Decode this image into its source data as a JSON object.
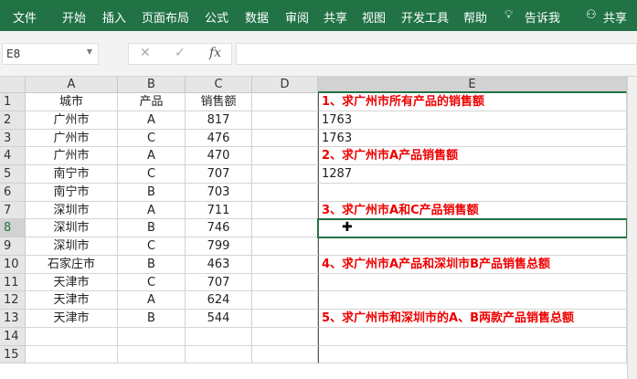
{
  "ribbon": {
    "tabs": [
      "文件",
      "开始",
      "插入",
      "页面布局",
      "公式",
      "数据",
      "审阅",
      "共享",
      "视图",
      "开发工具",
      "帮助"
    ],
    "tell_me": "告诉我",
    "share": "共享"
  },
  "formula_bar": {
    "name_box": "E8",
    "cancel": "✕",
    "enter": "✓",
    "fx": "fx",
    "value": ""
  },
  "columns": [
    "A",
    "B",
    "C",
    "D",
    "E"
  ],
  "rows": [
    {
      "n": "1",
      "a": "城市",
      "b": "产品",
      "c": "销售额",
      "e": "1、求广州市所有产品的销售额",
      "red": true
    },
    {
      "n": "2",
      "a": "广州市",
      "b": "A",
      "c": "817",
      "e": "1763"
    },
    {
      "n": "3",
      "a": "广州市",
      "b": "C",
      "c": "476",
      "e": "1763"
    },
    {
      "n": "4",
      "a": "广州市",
      "b": "A",
      "c": "470",
      "e": "2、求广州市A产品销售额",
      "red": true
    },
    {
      "n": "5",
      "a": "南宁市",
      "b": "C",
      "c": "707",
      "e": "1287"
    },
    {
      "n": "6",
      "a": "南宁市",
      "b": "B",
      "c": "703",
      "e": ""
    },
    {
      "n": "7",
      "a": "深圳市",
      "b": "A",
      "c": "711",
      "e": "3、求广州市A和C产品销售额",
      "red": true
    },
    {
      "n": "8",
      "a": "深圳市",
      "b": "B",
      "c": "746",
      "e": ""
    },
    {
      "n": "9",
      "a": "深圳市",
      "b": "C",
      "c": "799",
      "e": ""
    },
    {
      "n": "10",
      "a": "石家庄市",
      "b": "B",
      "c": "463",
      "e": "4、求广州市A产品和深圳市B产品销售总额",
      "red": true
    },
    {
      "n": "11",
      "a": "天津市",
      "b": "C",
      "c": "707",
      "e": ""
    },
    {
      "n": "12",
      "a": "天津市",
      "b": "A",
      "c": "624",
      "e": ""
    },
    {
      "n": "13",
      "a": "天津市",
      "b": "B",
      "c": "544",
      "e": "5、求广州市和深圳市的A、B两款产品销售总额",
      "red": true
    },
    {
      "n": "14",
      "a": "",
      "b": "",
      "c": "",
      "e": ""
    },
    {
      "n": "15",
      "a": "",
      "b": "",
      "c": "",
      "e": ""
    }
  ],
  "colors": {
    "ribbon": "#217346",
    "highlight": "#e00000",
    "selection": "#217346"
  }
}
